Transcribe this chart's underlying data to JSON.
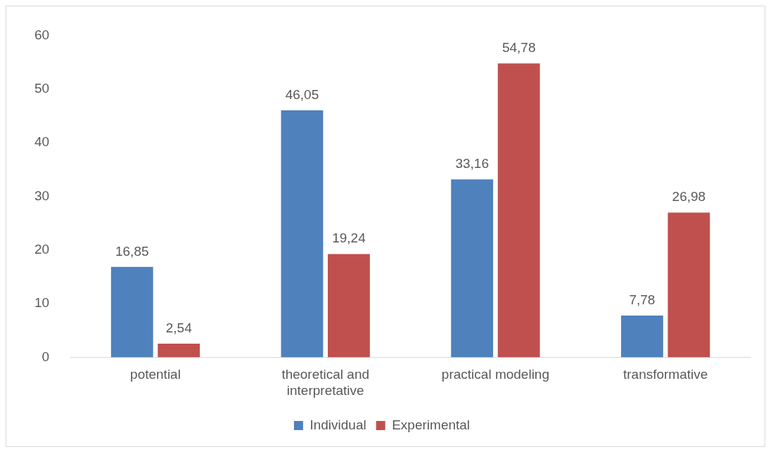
{
  "chart_data": {
    "type": "bar",
    "categories": [
      "potential",
      "theoretical and interpretative",
      "practical modeling",
      "transformative"
    ],
    "series": [
      {
        "name": "Individual",
        "color": "#4f81bd",
        "values": [
          16.85,
          46.05,
          33.16,
          7.78
        ],
        "value_labels": [
          "16,85",
          "46,05",
          "33,16",
          "7,78"
        ]
      },
      {
        "name": "Experimental",
        "color": "#c0504d",
        "values": [
          2.54,
          19.24,
          54.78,
          26.98
        ],
        "value_labels": [
          "2,54",
          "19,24",
          "54,78",
          "26,98"
        ]
      }
    ],
    "ylim": [
      0,
      60
    ],
    "yticks": [
      0,
      10,
      20,
      30,
      40,
      50,
      60
    ],
    "grid": false,
    "legend": "bottom"
  }
}
